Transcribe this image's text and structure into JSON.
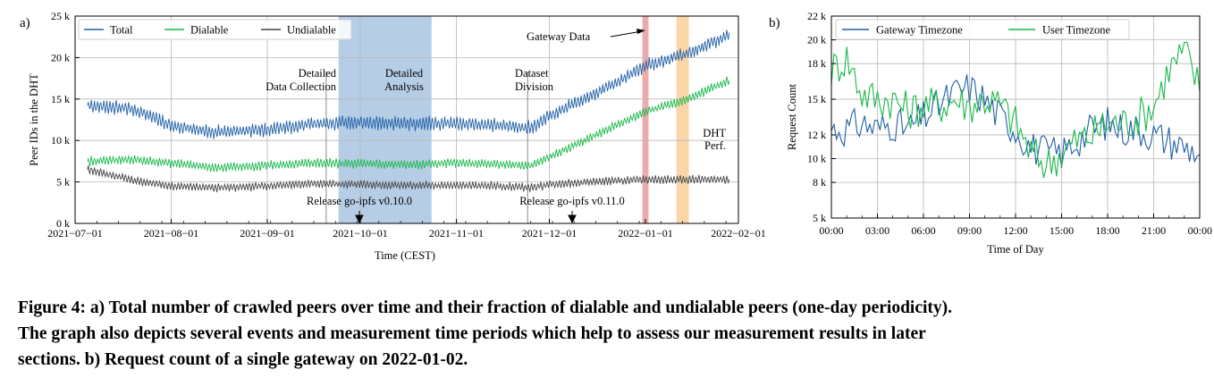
{
  "figure": {
    "caption_lines": [
      "Figure 4: a) Total number of crawled peers over time and their fraction of dialable and undialable peers (one-day periodicity).",
      "The graph also depicts several events and measurement time periods which help to assess our measurement results in later",
      "sections. b) Request count of a single gateway on 2022-01-02."
    ]
  },
  "colors": {
    "total": "#1f5fa6",
    "dialable": "#19b84a",
    "undialable": "#444444",
    "analysis_band": "#8fb2d8",
    "red_band": "#f08d8d",
    "orange_band": "#f8c88c",
    "gateway_tz": "#1f5fa6",
    "user_tz": "#19b84a"
  },
  "chart_data": [
    {
      "panel_label": "a)",
      "type": "line",
      "xlabel": "Time (CEST)",
      "ylabel": "Peer IDs in the DHT",
      "x_range": [
        "2021-07-01",
        "2022-01-31"
      ],
      "ylim": [
        0,
        25000
      ],
      "yticks": [
        0,
        5000,
        10000,
        15000,
        20000,
        25000
      ],
      "ytick_labels": [
        "0 k",
        "5 k",
        "10 k",
        "15 k",
        "20 k",
        "25 k"
      ],
      "xtick_labels": [
        "2021−07−01",
        "2021−08−01",
        "2021−09−01",
        "2021−10−01",
        "2021−11−01",
        "2021−12−01",
        "2022−01−01",
        "2022−02−01"
      ],
      "grid": true,
      "legend": {
        "position": "top-left",
        "entries": [
          "Total",
          "Dialable",
          "Undialable"
        ]
      },
      "series": [
        {
          "name": "Total",
          "color_key": "total",
          "oscillation": 1500,
          "points": [
            [
              "2021-07-05",
              14200
            ],
            [
              "2021-07-20",
              13800
            ],
            [
              "2021-08-01",
              11800
            ],
            [
              "2021-08-15",
              11000
            ],
            [
              "2021-09-01",
              11300
            ],
            [
              "2021-09-15",
              12000
            ],
            [
              "2021-10-01",
              12200
            ],
            [
              "2021-10-15",
              12000
            ],
            [
              "2021-11-01",
              12100
            ],
            [
              "2021-11-15",
              11800
            ],
            [
              "2021-11-25",
              11500
            ],
            [
              "2021-12-01",
              13000
            ],
            [
              "2021-12-15",
              15500
            ],
            [
              "2022-01-01",
              19000
            ],
            [
              "2022-01-15",
              20500
            ],
            [
              "2022-01-28",
              22800
            ]
          ]
        },
        {
          "name": "Dialable",
          "color_key": "dialable",
          "oscillation": 1000,
          "points": [
            [
              "2021-07-05",
              7500
            ],
            [
              "2021-07-20",
              7700
            ],
            [
              "2021-08-01",
              7300
            ],
            [
              "2021-08-15",
              6700
            ],
            [
              "2021-09-01",
              7000
            ],
            [
              "2021-09-15",
              7300
            ],
            [
              "2021-10-01",
              7200
            ],
            [
              "2021-10-15",
              7100
            ],
            [
              "2021-11-01",
              7300
            ],
            [
              "2021-11-15",
              7100
            ],
            [
              "2021-11-25",
              7000
            ],
            [
              "2021-12-01",
              8000
            ],
            [
              "2021-12-15",
              10500
            ],
            [
              "2022-01-01",
              13500
            ],
            [
              "2022-01-15",
              15000
            ],
            [
              "2022-01-28",
              17300
            ]
          ]
        },
        {
          "name": "Undialable",
          "color_key": "undialable",
          "oscillation": 900,
          "points": [
            [
              "2021-07-05",
              6500
            ],
            [
              "2021-07-20",
              5200
            ],
            [
              "2021-08-01",
              4500
            ],
            [
              "2021-08-15",
              4300
            ],
            [
              "2021-09-01",
              4500
            ],
            [
              "2021-09-15",
              4800
            ],
            [
              "2021-10-01",
              4700
            ],
            [
              "2021-10-15",
              4600
            ],
            [
              "2021-11-01",
              4600
            ],
            [
              "2021-11-15",
              4500
            ],
            [
              "2021-11-25",
              4300
            ],
            [
              "2021-12-01",
              4700
            ],
            [
              "2021-12-15",
              5000
            ],
            [
              "2022-01-01",
              5300
            ],
            [
              "2022-01-15",
              5300
            ],
            [
              "2022-01-28",
              5300
            ]
          ]
        }
      ],
      "bands": [
        {
          "name": "detailed-analysis",
          "start": "2021-09-24",
          "end": "2021-10-24",
          "color_key": "analysis_band"
        },
        {
          "name": "gateway-data",
          "start": "2021-12-31",
          "end": "2022-01-02",
          "color_key": "red_band"
        },
        {
          "name": "dht-perf",
          "start": "2022-01-11",
          "end": "2022-01-15",
          "color_key": "orange_band"
        }
      ],
      "event_lines": [
        {
          "name": "detailed-data-collection",
          "date": "2021-09-20"
        },
        {
          "name": "dataset-division",
          "date": "2021-11-24"
        }
      ],
      "annotations": [
        {
          "name": "detailed-data-collection",
          "lines": [
            "Detailed",
            "Data Collection"
          ]
        },
        {
          "name": "detailed-analysis",
          "lines": [
            "Detailed",
            "Analysis"
          ]
        },
        {
          "name": "dataset-division",
          "lines": [
            "Dataset",
            "Division"
          ]
        },
        {
          "name": "gateway-data",
          "lines": [
            "Gateway Data"
          ]
        },
        {
          "name": "dht-perf",
          "lines": [
            "DHT",
            "Perf."
          ]
        },
        {
          "name": "release-0-10",
          "lines": [
            "Release go-ipfs v0.10.0"
          ],
          "date": "2021-09-28"
        },
        {
          "name": "release-0-11",
          "lines": [
            "Release go-ipfs v0.11.0"
          ],
          "date": "2021-12-08"
        }
      ]
    },
    {
      "panel_label": "b)",
      "type": "line",
      "xlabel": "Time of Day",
      "ylabel": "Request Count",
      "x_range_hours": [
        0,
        24
      ],
      "xticks_hours": [
        0,
        3,
        6,
        9,
        12,
        15,
        18,
        21,
        24
      ],
      "xtick_labels": [
        "00:00",
        "03:00",
        "06:00",
        "09:00",
        "12:00",
        "15:00",
        "18:00",
        "21:00",
        "00:00"
      ],
      "ylim": [
        5000,
        22000
      ],
      "yticks": [
        5000,
        8000,
        10000,
        12000,
        15000,
        18000,
        20000,
        22000
      ],
      "ytick_labels": [
        "5 k",
        "8 k",
        "10 k",
        "12 k",
        "15 k",
        "18 k",
        "20 k",
        "22 k"
      ],
      "grid": true,
      "legend": {
        "position": "top-left",
        "entries": [
          "Gateway Timezone",
          "User Timezone"
        ]
      },
      "series": [
        {
          "name": "Gateway Timezone",
          "color_key": "gateway_tz",
          "noise": 1500,
          "points": [
            [
              0,
              12500
            ],
            [
              1,
              12500
            ],
            [
              2,
              13000
            ],
            [
              3,
              12500
            ],
            [
              4,
              13000
            ],
            [
              5,
              12500
            ],
            [
              6,
              13500
            ],
            [
              7,
              14500
            ],
            [
              8,
              15500
            ],
            [
              9,
              16000
            ],
            [
              10,
              15000
            ],
            [
              11,
              13500
            ],
            [
              12,
              12500
            ],
            [
              13,
              11000
            ],
            [
              14,
              10500
            ],
            [
              15,
              10500
            ],
            [
              16,
              11500
            ],
            [
              17,
              12500
            ],
            [
              18,
              13000
            ],
            [
              19,
              12500
            ],
            [
              20,
              12500
            ],
            [
              21,
              12000
            ],
            [
              22,
              11500
            ],
            [
              23,
              11000
            ],
            [
              24,
              10500
            ]
          ]
        },
        {
          "name": "User Timezone",
          "color_key": "user_tz",
          "noise": 1700,
          "points": [
            [
              0,
              17500
            ],
            [
              1,
              18500
            ],
            [
              2,
              15500
            ],
            [
              3,
              15000
            ],
            [
              4,
              15000
            ],
            [
              5,
              14000
            ],
            [
              6,
              14500
            ],
            [
              7,
              14500
            ],
            [
              8,
              15000
            ],
            [
              9,
              14500
            ],
            [
              10,
              15000
            ],
            [
              11,
              14500
            ],
            [
              12,
              13000
            ],
            [
              13,
              10500
            ],
            [
              14,
              9500
            ],
            [
              15,
              10500
            ],
            [
              16,
              11500
            ],
            [
              17,
              12000
            ],
            [
              18,
              13000
            ],
            [
              19,
              13000
            ],
            [
              20,
              13500
            ],
            [
              21,
              14500
            ],
            [
              22,
              17500
            ],
            [
              23,
              19000
            ],
            [
              24,
              16000
            ]
          ]
        }
      ]
    }
  ]
}
